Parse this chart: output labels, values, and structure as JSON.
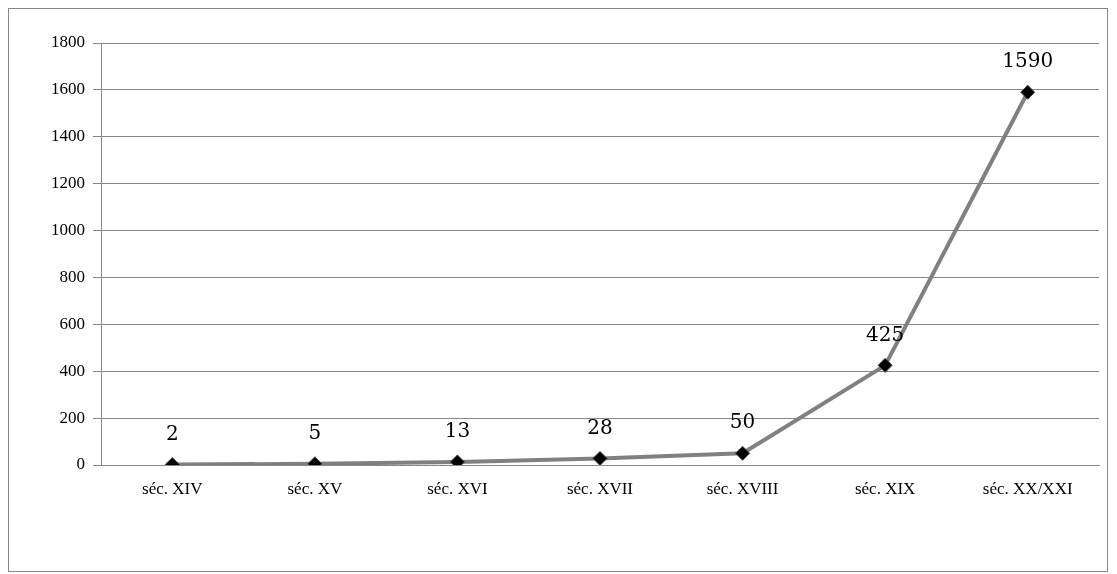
{
  "chart_data": {
    "type": "line",
    "categories": [
      "séc. XIV",
      "séc. XV",
      "séc. XVI",
      "séc. XVII",
      "séc. XVIII",
      "séc. XIX",
      "séc. XX/XXI"
    ],
    "series": [
      {
        "color": "#808080",
        "values": [
          2,
          5,
          13,
          28,
          50,
          425,
          1590
        ]
      }
    ],
    "ylim": [
      0,
      1800
    ],
    "yticks": [
      0,
      200,
      400,
      600,
      800,
      1000,
      1200,
      1400,
      1600,
      1800
    ],
    "grid": "y",
    "legend": false,
    "marker": "diamond",
    "line_style": "solid",
    "data_labels": true
  }
}
